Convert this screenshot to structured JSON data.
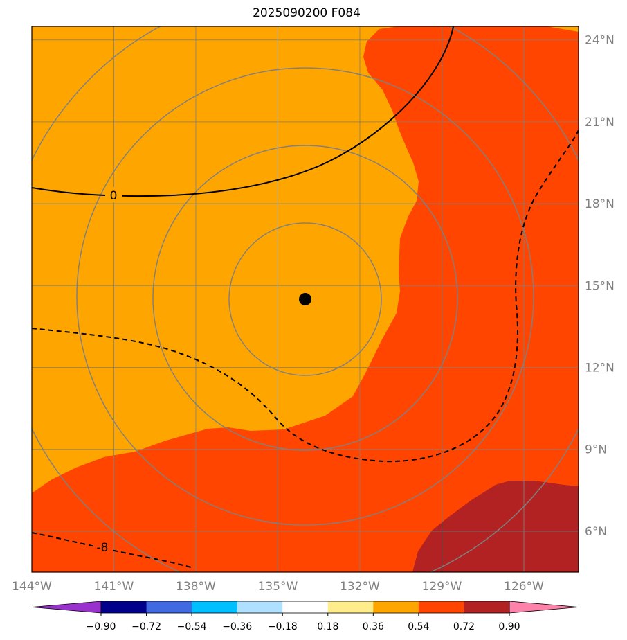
{
  "title": "2025090200 F084",
  "map": {
    "lon_range": [
      -144,
      -124
    ],
    "lat_range": [
      4.5,
      24.5
    ],
    "center": {
      "lon": -134,
      "lat": 14.3
    },
    "lon_ticks": [
      {
        "value": -144,
        "label": "144°W"
      },
      {
        "value": -141,
        "label": "141°W"
      },
      {
        "value": -138,
        "label": "138°W"
      },
      {
        "value": -135,
        "label": "135°W"
      },
      {
        "value": -132,
        "label": "132°W"
      },
      {
        "value": -129,
        "label": "129°W"
      },
      {
        "value": -126,
        "label": "126°W"
      }
    ],
    "lat_ticks": [
      {
        "value": 24,
        "label": "24°N"
      },
      {
        "value": 21,
        "label": "21°N"
      },
      {
        "value": 18,
        "label": "18°N"
      },
      {
        "value": 15,
        "label": "15°N"
      },
      {
        "value": 12,
        "label": "12°N"
      },
      {
        "value": 9,
        "label": "9°N"
      },
      {
        "value": 6,
        "label": "6°N"
      }
    ],
    "range_rings_deg": [
      2.75,
      5.5,
      8.25,
      11.0
    ],
    "contour_labels": [
      {
        "text": "0",
        "lon": -141.0,
        "lat": 18.05
      },
      {
        "text": "-8",
        "lon": -141.4,
        "lat": 5.25
      }
    ],
    "colors": {
      "bg": "#ffa500",
      "band_054_072": "#ff4500",
      "band_072_090": "#b22222",
      "grid": "#808080",
      "center_marker": "#000000"
    }
  },
  "colorbar": {
    "ticks": [
      "−0.90",
      "−0.72",
      "−0.54",
      "−0.36",
      "−0.18",
      "0.18",
      "0.36",
      "0.54",
      "0.72",
      "0.90"
    ],
    "colors": [
      "#9932cc",
      "#00008b",
      "#4169e1",
      "#00bfff",
      "#b0e0ff",
      "#ffffff",
      "#ffec8b",
      "#ffa500",
      "#ff4500",
      "#b22222",
      "#ff82ab"
    ]
  }
}
